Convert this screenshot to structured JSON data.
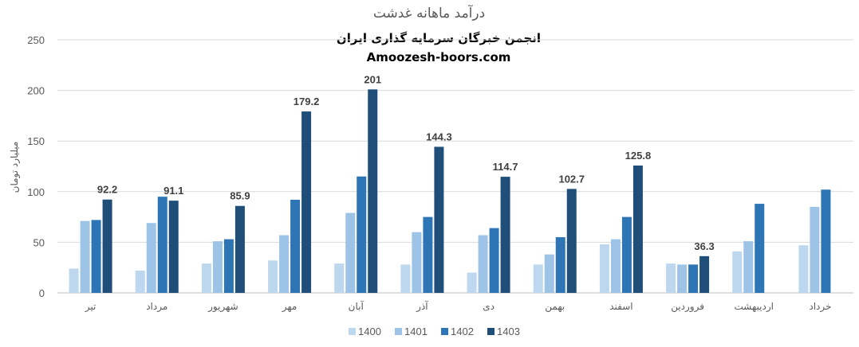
{
  "chart_data": {
    "type": "bar",
    "title": "درآمد ماهانه غدشت",
    "watermark_line1": "انجمن خبرگان سرمایه گذاری ایران",
    "watermark_line2": "Amoozesh-boors.com",
    "xlabel": "",
    "ylabel": "میلیارد تومان",
    "ylim": [
      0,
      250
    ],
    "yticks": [
      0,
      50,
      100,
      150,
      200,
      250
    ],
    "grid": true,
    "legend_position": "bottom",
    "categories": [
      "تیر",
      "مرداد",
      "شهریور",
      "مهر",
      "آبان",
      "آذر",
      "دی",
      "بهمن",
      "اسفند",
      "فروردین",
      "اردیبهشت",
      "خرداد"
    ],
    "series": [
      {
        "name": "1400",
        "color": "#bdd7ee",
        "values": [
          24,
          22,
          29,
          32,
          29,
          28,
          20,
          28,
          48,
          29,
          41,
          47
        ]
      },
      {
        "name": "1401",
        "color": "#9dc3e6",
        "values": [
          71,
          69,
          51,
          57,
          79,
          60,
          57,
          38,
          53,
          28,
          51,
          85
        ]
      },
      {
        "name": "1402",
        "color": "#2e75b6",
        "values": [
          72,
          95,
          53,
          92,
          115,
          75,
          64,
          55,
          75,
          28,
          88,
          102
        ]
      },
      {
        "name": "1403",
        "color": "#1f4e79",
        "values": [
          92.2,
          91.1,
          85.9,
          179.2,
          201,
          144.3,
          114.7,
          102.7,
          125.8,
          36.3,
          null,
          null
        ],
        "labels": [
          "92.2",
          "91.1",
          "85.9",
          "179.2",
          "201",
          "144.3",
          "114.7",
          "102.7",
          "125.8",
          "36.3",
          "",
          ""
        ]
      }
    ]
  }
}
